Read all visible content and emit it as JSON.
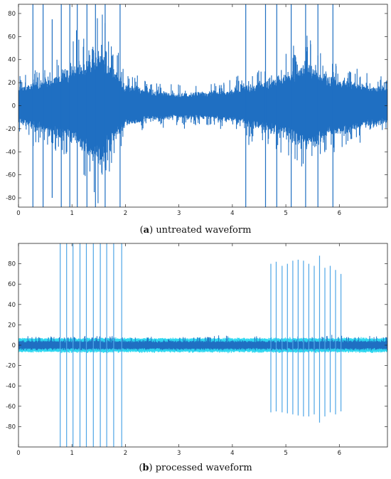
{
  "captions": {
    "a_letter": "a",
    "a_text": "untreated waveform",
    "b_letter": "b",
    "b_text": "processed waveform"
  },
  "colors": {
    "signal": "#1f6fc2",
    "signal_light": "#4fa6e6",
    "cyan": "#2fd7f0",
    "axis": "#222222"
  },
  "chart_data": [
    {
      "type": "line",
      "title": "",
      "xlabel": "",
      "ylabel": "",
      "xlim": [
        0,
        6.9
      ],
      "ylim": [
        -88,
        88
      ],
      "xticks": [
        0,
        1,
        2,
        3,
        4,
        5,
        6
      ],
      "yticks": [
        -80,
        -60,
        -40,
        -20,
        0,
        20,
        40,
        60,
        80
      ],
      "grid": false,
      "envelope": [
        {
          "x": 0.0,
          "amp": 18
        },
        {
          "x": 0.4,
          "amp": 24
        },
        {
          "x": 0.8,
          "amp": 30
        },
        {
          "x": 1.2,
          "amp": 42
        },
        {
          "x": 1.5,
          "amp": 55
        },
        {
          "x": 1.7,
          "amp": 40
        },
        {
          "x": 2.0,
          "amp": 20
        },
        {
          "x": 2.5,
          "amp": 14
        },
        {
          "x": 3.0,
          "amp": 12
        },
        {
          "x": 3.5,
          "amp": 13
        },
        {
          "x": 4.0,
          "amp": 16
        },
        {
          "x": 4.5,
          "amp": 22
        },
        {
          "x": 5.0,
          "amp": 30
        },
        {
          "x": 5.4,
          "amp": 40
        },
        {
          "x": 5.8,
          "amp": 30
        },
        {
          "x": 6.3,
          "amp": 22
        },
        {
          "x": 6.9,
          "amp": 16
        }
      ],
      "spikes": [
        {
          "x": 0.27,
          "min": -88,
          "max": 88
        },
        {
          "x": 0.46,
          "min": -88,
          "max": 88
        },
        {
          "x": 0.63,
          "min": -80,
          "max": 75
        },
        {
          "x": 0.8,
          "min": -88,
          "max": 88
        },
        {
          "x": 0.96,
          "min": -88,
          "max": 88
        },
        {
          "x": 1.1,
          "min": -88,
          "max": 88
        },
        {
          "x": 1.28,
          "min": -88,
          "max": 88
        },
        {
          "x": 1.44,
          "min": -88,
          "max": 88
        },
        {
          "x": 1.62,
          "min": -88,
          "max": 88
        },
        {
          "x": 1.9,
          "min": -88,
          "max": 88
        },
        {
          "x": 4.25,
          "min": -88,
          "max": 88
        },
        {
          "x": 4.62,
          "min": -88,
          "max": 88
        },
        {
          "x": 4.83,
          "min": -88,
          "max": 88
        },
        {
          "x": 5.1,
          "min": -88,
          "max": 88
        },
        {
          "x": 5.37,
          "min": -88,
          "max": 88
        },
        {
          "x": 5.6,
          "min": -88,
          "max": 88
        },
        {
          "x": 5.88,
          "min": -88,
          "max": 88
        }
      ]
    },
    {
      "type": "line",
      "title": "",
      "xlabel": "",
      "ylabel": "",
      "xlim": [
        0,
        6.9
      ],
      "ylim": [
        -100,
        100
      ],
      "xticks": [
        0,
        1,
        2,
        3,
        4,
        5,
        6
      ],
      "yticks": [
        -80,
        -60,
        -40,
        -20,
        0,
        20,
        40,
        60,
        80
      ],
      "grid": false,
      "baseline_amp": 6,
      "spikes": [
        {
          "x": 0.78,
          "min": -100,
          "max": 100
        },
        {
          "x": 0.9,
          "min": -100,
          "max": 100
        },
        {
          "x": 1.02,
          "min": -100,
          "max": 100
        },
        {
          "x": 1.15,
          "min": -100,
          "max": 100
        },
        {
          "x": 1.27,
          "min": -100,
          "max": 100
        },
        {
          "x": 1.4,
          "min": -100,
          "max": 100
        },
        {
          "x": 1.53,
          "min": -100,
          "max": 100
        },
        {
          "x": 1.65,
          "min": -100,
          "max": 100
        },
        {
          "x": 1.78,
          "min": -100,
          "max": 100
        },
        {
          "x": 1.93,
          "min": -100,
          "max": 100
        },
        {
          "x": 4.72,
          "min": -66,
          "max": 80
        },
        {
          "x": 4.82,
          "min": -65,
          "max": 82
        },
        {
          "x": 4.93,
          "min": -66,
          "max": 78
        },
        {
          "x": 5.03,
          "min": -67,
          "max": 80
        },
        {
          "x": 5.13,
          "min": -68,
          "max": 83
        },
        {
          "x": 5.23,
          "min": -69,
          "max": 84
        },
        {
          "x": 5.33,
          "min": -70,
          "max": 83
        },
        {
          "x": 5.43,
          "min": -70,
          "max": 80
        },
        {
          "x": 5.53,
          "min": -68,
          "max": 78
        },
        {
          "x": 5.63,
          "min": -76,
          "max": 88
        },
        {
          "x": 5.73,
          "min": -70,
          "max": 76
        },
        {
          "x": 5.83,
          "min": -66,
          "max": 78
        },
        {
          "x": 5.93,
          "min": -68,
          "max": 74
        },
        {
          "x": 6.03,
          "min": -65,
          "max": 70
        }
      ]
    }
  ]
}
